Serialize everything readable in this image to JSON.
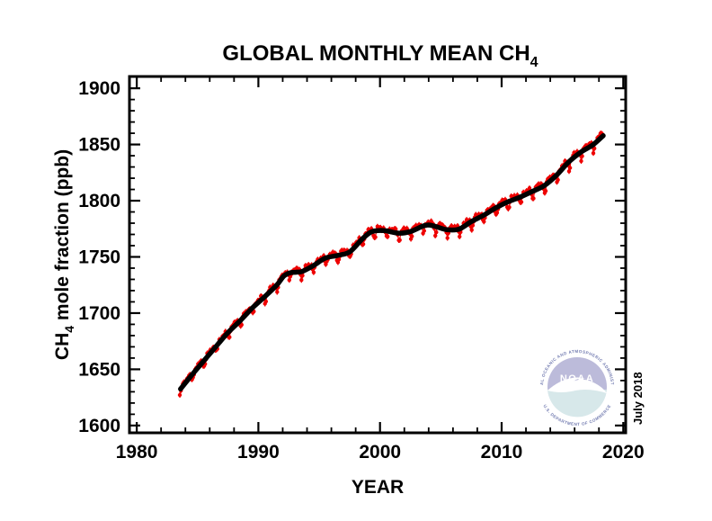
{
  "figure": {
    "title_main": "GLOBAL MONTHLY MEAN CH",
    "title_sub": "4",
    "date_note": "July 2018"
  },
  "axes": {
    "x_label": "YEAR",
    "y_label_prefix": "CH",
    "y_label_sub": "4",
    "y_label_suffix": " mole fraction (ppb)"
  },
  "logo": {
    "acronym": "NOAA",
    "ring_top": "NATIONAL OCEANIC AND ATMOSPHERIC ADMINISTRATION",
    "ring_bottom": "U.S. DEPARTMENT OF COMMERCE",
    "circle_top_color": "#aeadd2",
    "circle_bottom_color": "#cfe3e6",
    "bird_color": "#ffffff",
    "ring_text_color": "#5560a0"
  },
  "colors": {
    "background": "#ffffff",
    "frame": "#000000",
    "monthly_series": "#ee0000",
    "trend_line": "#000000"
  },
  "chart_data": {
    "type": "line",
    "title": "GLOBAL MONTHLY MEAN CH4",
    "xlabel": "YEAR",
    "ylabel": "CH4 mole fraction (ppb)",
    "xlim": [
      1979.4,
      2020.2
    ],
    "ylim": [
      1593.5,
      1910.5
    ],
    "x_ticks": [
      1980,
      1990,
      2000,
      2010,
      2020
    ],
    "x_minor_step": 2,
    "y_ticks": [
      1600,
      1650,
      1700,
      1750,
      1800,
      1850,
      1900
    ],
    "y_minor_step": 10,
    "grid": false,
    "legend": "none",
    "series": [
      {
        "name": "monthly mean with uncertainty bars",
        "type": "scatter+line",
        "color": "#ee0000",
        "marker": "dot",
        "x_start": 1983.542,
        "x_end": 2018.3,
        "x_step_years": 0.0833333,
        "seasonal": {
          "baseline_ppb": 2.0,
          "dip_ppb": 8.0,
          "dip_center_yearfrac": 0.56,
          "dip_sigma": 0.09
        },
        "noise_ppb": 1.5,
        "uncertainty_halfwidth_ppb": 2.4,
        "derivation": "trend value + seasonal cycle + small scatter"
      },
      {
        "name": "deseasonalized trend",
        "type": "line",
        "color": "#000000",
        "x": [
          1983.6,
          1984.5,
          1985.5,
          1986.5,
          1987.5,
          1988.5,
          1989.5,
          1990.5,
          1991.5,
          1992.1,
          1992.6,
          1993.1,
          1993.6,
          1994.5,
          1995.5,
          1996.5,
          1997.5,
          1998.5,
          1999.2,
          1999.8,
          2000.5,
          2001.5,
          2002.5,
          2003.5,
          2004.0,
          2004.6,
          2005.5,
          2006.5,
          2007.5,
          2008.5,
          2009.5,
          2010.5,
          2011.5,
          2012.5,
          2013.5,
          2014.5,
          2015.5,
          2016.5,
          2017.5,
          2018.35
        ],
        "values": [
          1632.5,
          1644.6,
          1657.3,
          1670.1,
          1682.7,
          1693.2,
          1704.5,
          1714.4,
          1724.8,
          1733.0,
          1735.8,
          1736.4,
          1737.0,
          1742.1,
          1748.9,
          1751.3,
          1754.4,
          1765.5,
          1771.8,
          1773.4,
          1773.2,
          1771.1,
          1772.6,
          1777.3,
          1778.4,
          1777.0,
          1774.2,
          1774.7,
          1781.4,
          1786.9,
          1793.5,
          1798.9,
          1803.1,
          1808.1,
          1813.4,
          1822.5,
          1834.3,
          1843.1,
          1849.7,
          1857.8
        ]
      }
    ]
  }
}
